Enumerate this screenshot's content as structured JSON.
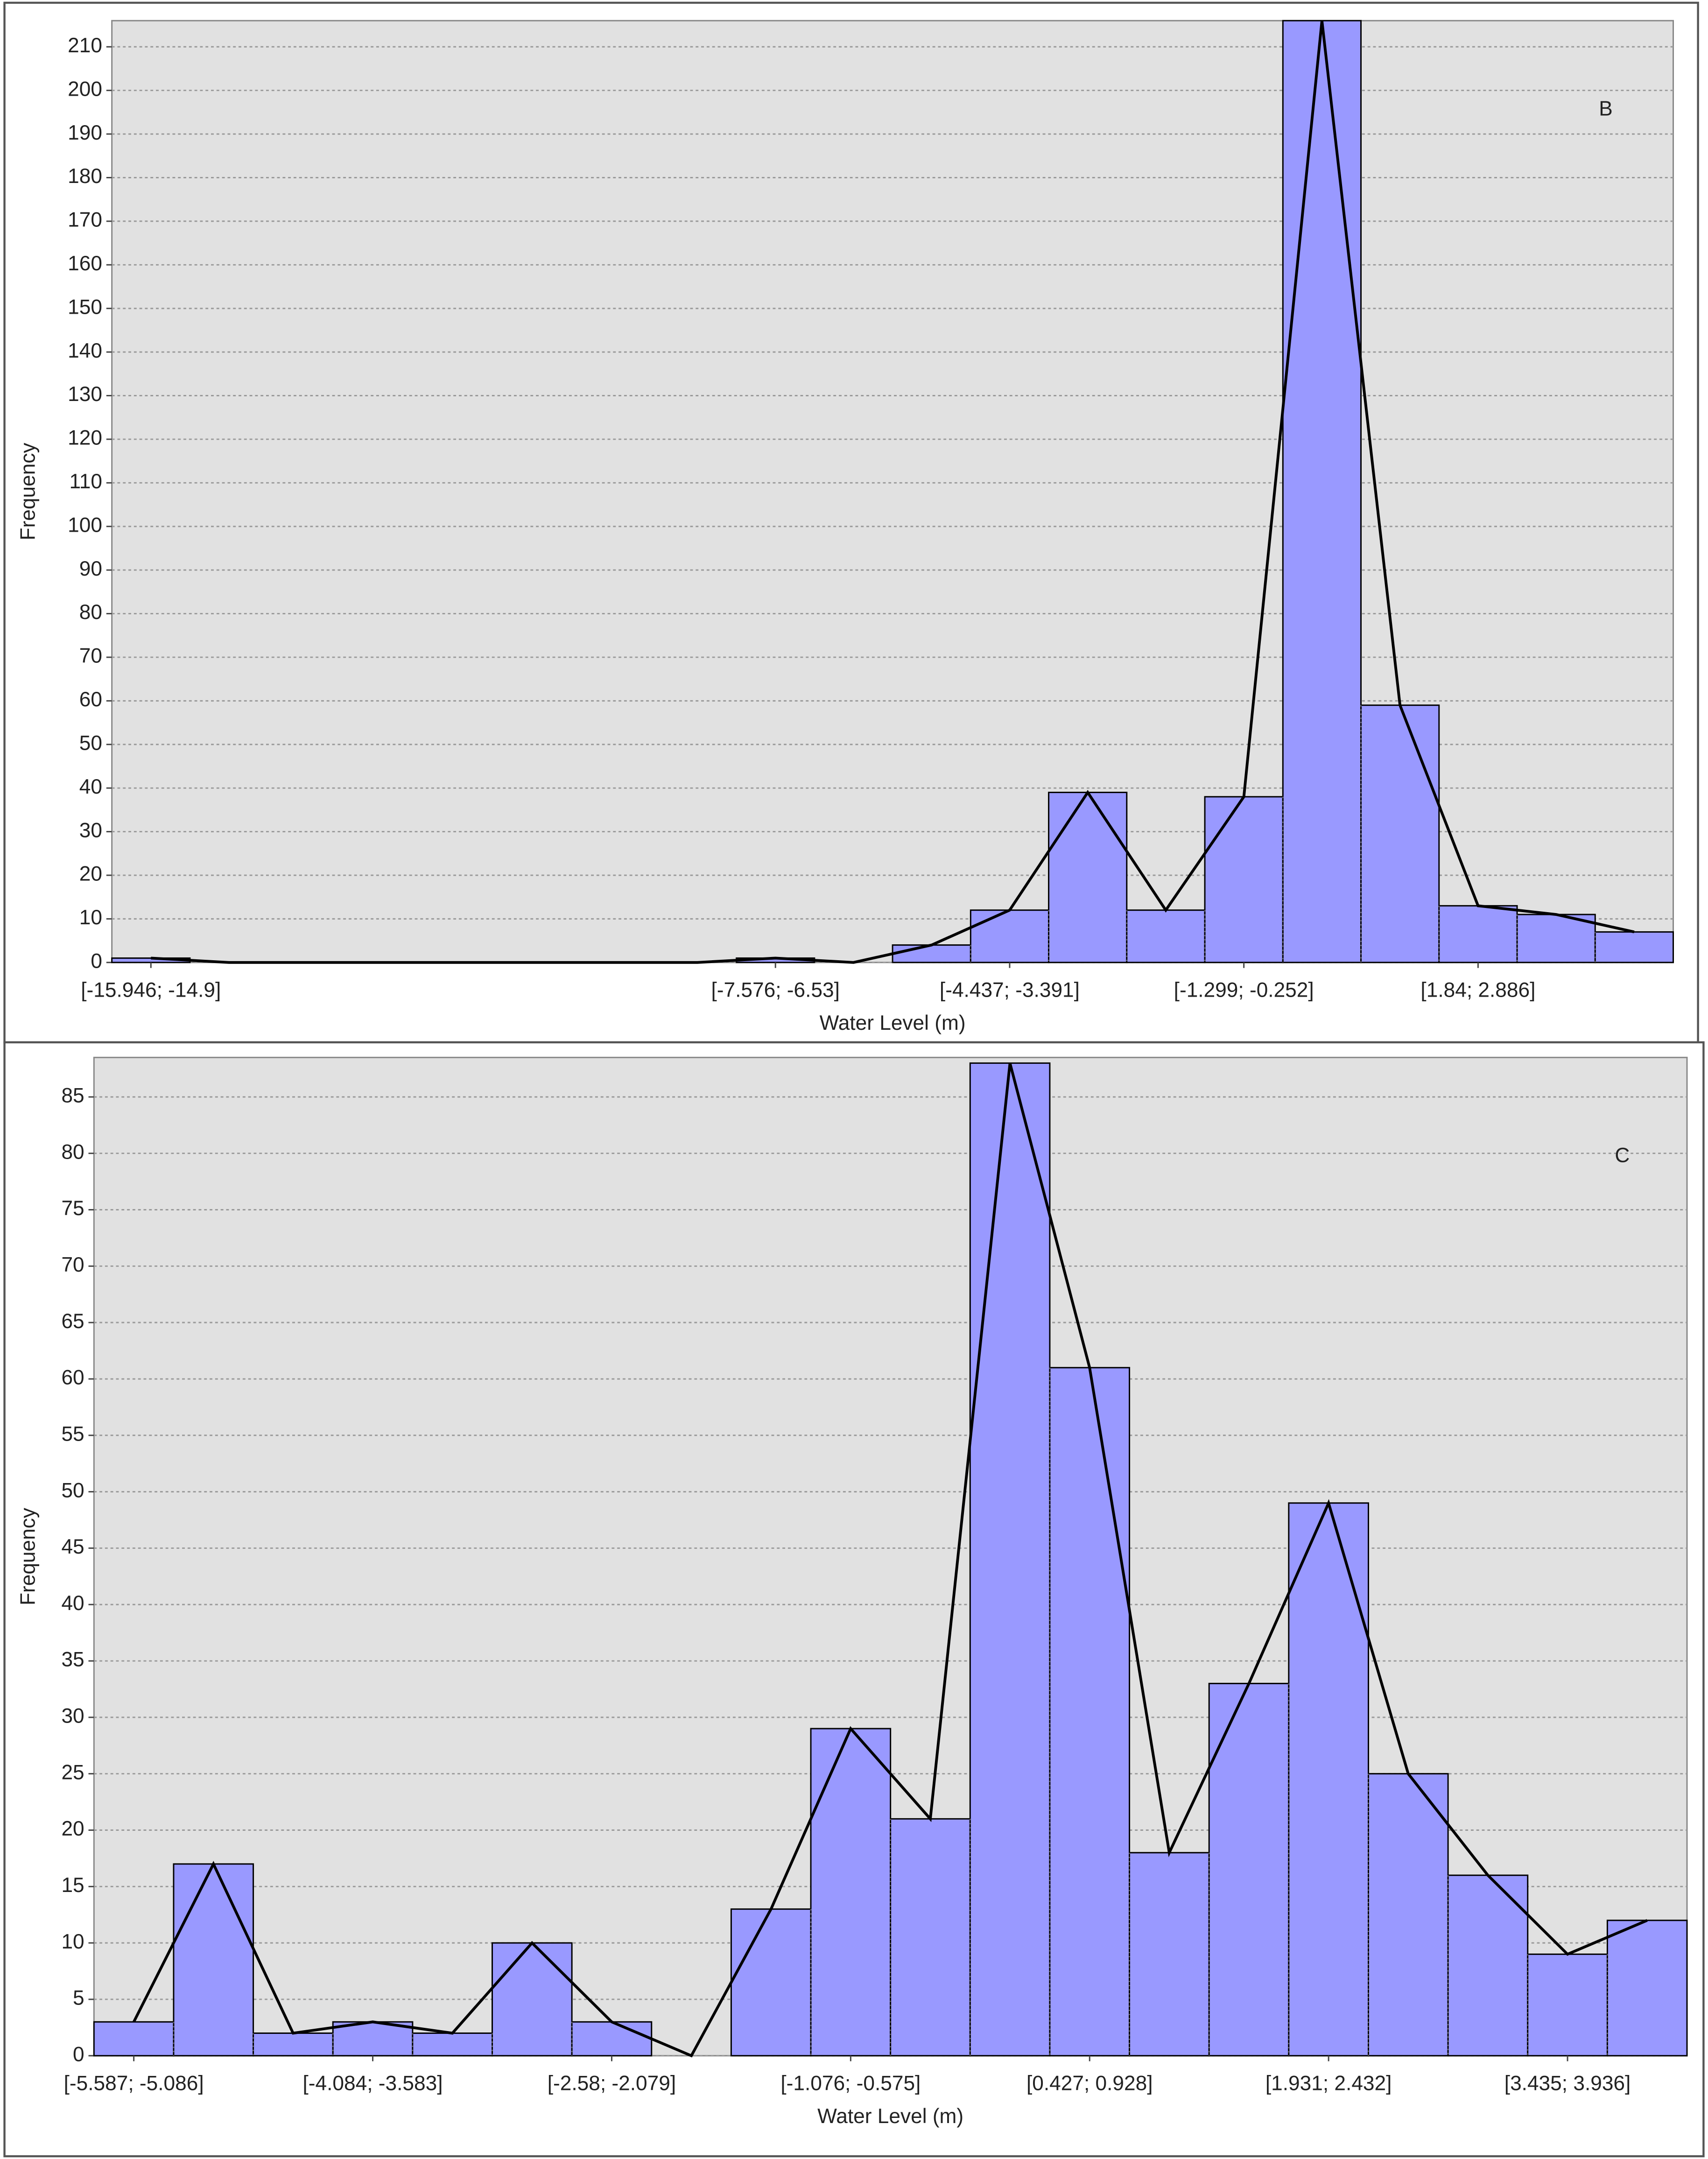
{
  "chart_data": [
    {
      "type": "histogram",
      "annotation": "B",
      "x_label": "Water Level (m)",
      "y_label": "Frequency",
      "categories": [
        "[-15.946; -14.9]",
        null,
        null,
        null,
        null,
        null,
        null,
        null,
        "[-7.576; -6.53]",
        null,
        null,
        "[-4.437; -3.391]",
        null,
        null,
        "[-1.299; -0.252]",
        null,
        null,
        "[1.84; 2.886]",
        null,
        null
      ],
      "values": [
        1,
        0,
        0,
        0,
        0,
        0,
        0,
        0,
        1,
        0,
        4,
        12,
        39,
        12,
        38,
        216,
        59,
        13,
        11,
        7
      ],
      "color": "#9999ff",
      "line_color": "#000000",
      "polygon": true,
      "grid": true,
      "ylim": [
        0,
        216
      ],
      "yticks": [
        0,
        10,
        20,
        30,
        40,
        50,
        60,
        70,
        80,
        90,
        100,
        110,
        120,
        130,
        140,
        150,
        160,
        170,
        180,
        190,
        200,
        210
      ]
    },
    {
      "type": "histogram",
      "annotation": "C",
      "x_label": "Water Level (m)",
      "y_label": "Frequency",
      "categories": [
        "[-5.587; -5.086]",
        null,
        null,
        "[-4.084; -3.583]",
        null,
        null,
        "[-2.58; -2.079]",
        null,
        null,
        "[-1.076; -0.575]",
        null,
        null,
        "[0.427; 0.928]",
        null,
        null,
        "[1.931; 2.432]",
        null,
        null,
        "[3.435; 3.936]",
        null
      ],
      "values": [
        3,
        17,
        2,
        3,
        2,
        10,
        3,
        0,
        13,
        29,
        21,
        88,
        61,
        18,
        33,
        49,
        25,
        16,
        9,
        12
      ],
      "color": "#9999ff",
      "line_color": "#000000",
      "polygon": true,
      "grid": true,
      "ylim": [
        0,
        88.5
      ],
      "yticks": [
        0,
        5,
        10,
        15,
        20,
        25,
        30,
        35,
        40,
        45,
        50,
        55,
        60,
        65,
        70,
        75,
        80,
        85
      ]
    }
  ]
}
